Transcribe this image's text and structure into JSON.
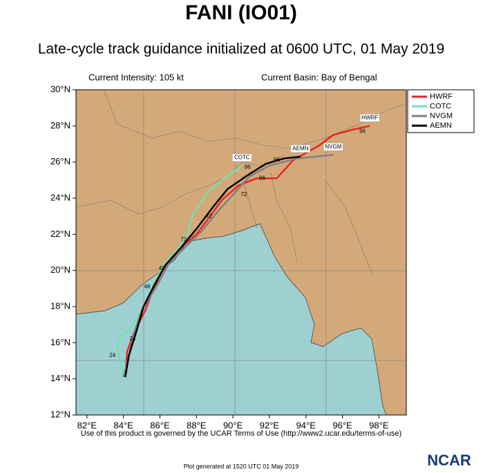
{
  "chart_data": {
    "type": "track-map",
    "title": "FANI (IO01)",
    "subtitle": "Late-cycle track guidance initialized at 0600 UTC, 01 May 2019",
    "intensity_label": "Current Intensity: 105 kt",
    "basin_label": "Current Basin: Bay of Bengal",
    "footer": "Use of this product is governed by the UCAR Terms of Use (http://www2.ucar.edu/terms-of-use)",
    "generated": "Plot generated at 1520 UTC  01 May 2019",
    "logo": "NCAR",
    "xlim": [
      81.4,
      99.5
    ],
    "ylim": [
      12,
      30
    ],
    "xticks": [
      {
        "value": 82,
        "label": "82°E"
      },
      {
        "value": 84,
        "label": "84°E"
      },
      {
        "value": 86,
        "label": "86°E"
      },
      {
        "value": 88,
        "label": "88°E"
      },
      {
        "value": 90,
        "label": "90°E"
      },
      {
        "value": 92,
        "label": "92°E"
      },
      {
        "value": 94,
        "label": "94°E"
      },
      {
        "value": 96,
        "label": "96°E"
      },
      {
        "value": 98,
        "label": "98°E"
      }
    ],
    "yticks": [
      {
        "value": 12,
        "label": "12°N"
      },
      {
        "value": 14,
        "label": "14°N"
      },
      {
        "value": 16,
        "label": "16°N"
      },
      {
        "value": 18,
        "label": "18°N"
      },
      {
        "value": 20,
        "label": "20°N"
      },
      {
        "value": 22,
        "label": "22°N"
      },
      {
        "value": 24,
        "label": "24°N"
      },
      {
        "value": 26,
        "label": "26°N"
      },
      {
        "value": 28,
        "label": "28°N"
      },
      {
        "value": 30,
        "label": "30°N"
      }
    ],
    "legend": "upper right",
    "series": [
      {
        "name": "HWRF",
        "color": "#e8251f",
        "x": [
          84.1,
          84.2,
          84.6,
          85.2,
          85.6,
          86.2,
          87.2,
          88.0,
          88.6,
          89.4,
          90.3,
          91.3,
          92.4,
          93.3,
          94.7,
          95.5,
          96.6,
          97.5
        ],
        "values": [
          14.1,
          15.5,
          16.6,
          17.8,
          18.9,
          20.1,
          21.3,
          22.0,
          22.8,
          23.9,
          24.7,
          25.1,
          25.1,
          26.1,
          26.9,
          27.5,
          27.8,
          28.0
        ]
      },
      {
        "name": "COTC",
        "color": "#6fe3b0",
        "x": [
          84.0,
          83.9,
          83.7,
          83.7,
          84.2,
          84.8,
          85.2,
          85.6,
          86.2,
          87.0,
          87.5,
          87.8,
          88.6,
          89.5,
          90.5
        ],
        "values": [
          14.1,
          14.7,
          15.5,
          16.2,
          16.6,
          17.4,
          18.2,
          19.1,
          20.3,
          21.2,
          22.0,
          23.1,
          24.3,
          25.1,
          25.8
        ]
      },
      {
        "name": "NVGM",
        "color": "#808080",
        "x": [
          84.0,
          84.3,
          84.6,
          85.0,
          85.8,
          86.5,
          87.5,
          88.3,
          89.2,
          90.1,
          90.9,
          92.0,
          93.5,
          95.5
        ],
        "values": [
          14.1,
          15.3,
          16.6,
          17.8,
          19.1,
          20.4,
          21.4,
          22.2,
          23.3,
          24.3,
          25.2,
          25.8,
          26.2,
          26.4
        ]
      },
      {
        "name": "AEMN",
        "color": "#000000",
        "x": [
          84.1,
          84.3,
          84.7,
          85.1,
          85.7,
          86.3,
          87.1,
          88.0,
          88.9,
          89.7,
          90.7,
          91.8,
          92.8,
          93.7
        ],
        "values": [
          14.1,
          15.3,
          16.6,
          18.0,
          19.2,
          20.3,
          21.2,
          22.3,
          23.5,
          24.5,
          25.2,
          25.9,
          26.2,
          26.3
        ]
      }
    ],
    "annotations": [
      {
        "text": "24",
        "lon": 83.4,
        "lat": 15.3
      },
      {
        "text": "24",
        "lon": 84.5,
        "lat": 16.2
      },
      {
        "text": "48",
        "lon": 85.3,
        "lat": 19.1
      },
      {
        "text": "48",
        "lon": 86.1,
        "lat": 20.1
      },
      {
        "text": "72",
        "lon": 87.3,
        "lat": 21.7
      },
      {
        "text": "72",
        "lon": 88.7,
        "lat": 23.0
      },
      {
        "text": "72",
        "lon": 90.6,
        "lat": 24.2
      },
      {
        "text": "96",
        "lon": 90.8,
        "lat": 25.7
      },
      {
        "text": "96",
        "lon": 91.6,
        "lat": 25.1
      },
      {
        "text": "96",
        "lon": 92.4,
        "lat": 26.1
      },
      {
        "text": "96",
        "lon": 97.1,
        "lat": 27.7
      }
    ]
  }
}
